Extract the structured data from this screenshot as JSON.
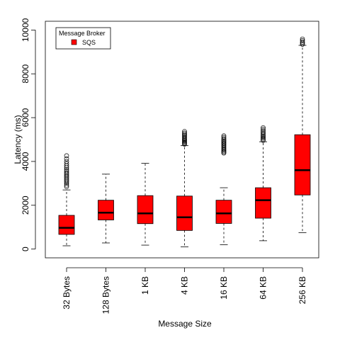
{
  "chart_data": {
    "type": "box",
    "title": "",
    "xlabel": "Message Size",
    "ylabel": "Latency (ms)",
    "ylim": [
      -400,
      10400
    ],
    "yticks": [
      0,
      2000,
      4000,
      6000,
      8000,
      10000
    ],
    "grid": false,
    "legend": {
      "title": "Message Broker",
      "placement": "top-left",
      "entries": [
        {
          "label": "SQS",
          "color": "#ff0000"
        }
      ]
    },
    "series": [
      {
        "name": "SQS",
        "color": "#ff0000",
        "boxes": [
          {
            "category": "32 Bytes",
            "whisker_low": 150,
            "q1": 670,
            "median": 970,
            "q3": 1540,
            "whisker_high": 2700,
            "outliers": [
              2850,
              2920,
              3000,
              3070,
              3130,
              3190,
              3250,
              3310,
              3370,
              3430,
              3490,
              3560,
              3630,
              3710,
              3800,
              3900,
              4000,
              4120,
              4260
            ]
          },
          {
            "category": "128 Bytes",
            "whisker_low": 280,
            "q1": 1330,
            "median": 1660,
            "q3": 2230,
            "whisker_high": 3420,
            "outliers": []
          },
          {
            "category": "1 KB",
            "whisker_low": 180,
            "q1": 1160,
            "median": 1630,
            "q3": 2440,
            "whisker_high": 3920,
            "outliers": []
          },
          {
            "category": "4 KB",
            "whisker_low": 100,
            "q1": 850,
            "median": 1450,
            "q3": 2420,
            "whisker_high": 4720,
            "outliers": [
              4790,
              4830,
              4870,
              4910,
              4950,
              4990,
              5040,
              5090,
              5140,
              5190,
              5240,
              5300,
              5370
            ]
          },
          {
            "category": "16 KB",
            "whisker_low": 200,
            "q1": 1170,
            "median": 1630,
            "q3": 2230,
            "whisker_high": 2800,
            "outliers": [
              4380,
              4430,
              4480,
              4530,
              4580,
              4630,
              4680,
              4730,
              4780,
              4830,
              4880,
              4930,
              4980,
              5040,
              5100,
              5170
            ]
          },
          {
            "category": "64 KB",
            "whisker_low": 380,
            "q1": 1410,
            "median": 2230,
            "q3": 2800,
            "whisker_high": 4900,
            "outliers": [
              4960,
              5010,
              5060,
              5110,
              5160,
              5210,
              5270,
              5330,
              5400,
              5470,
              5540
            ]
          },
          {
            "category": "256 KB",
            "whisker_low": 750,
            "q1": 2470,
            "median": 3600,
            "q3": 5220,
            "whisker_high": 9300,
            "outliers": [
              9350,
              9400,
              9450,
              9520,
              9590
            ]
          }
        ]
      }
    ]
  }
}
